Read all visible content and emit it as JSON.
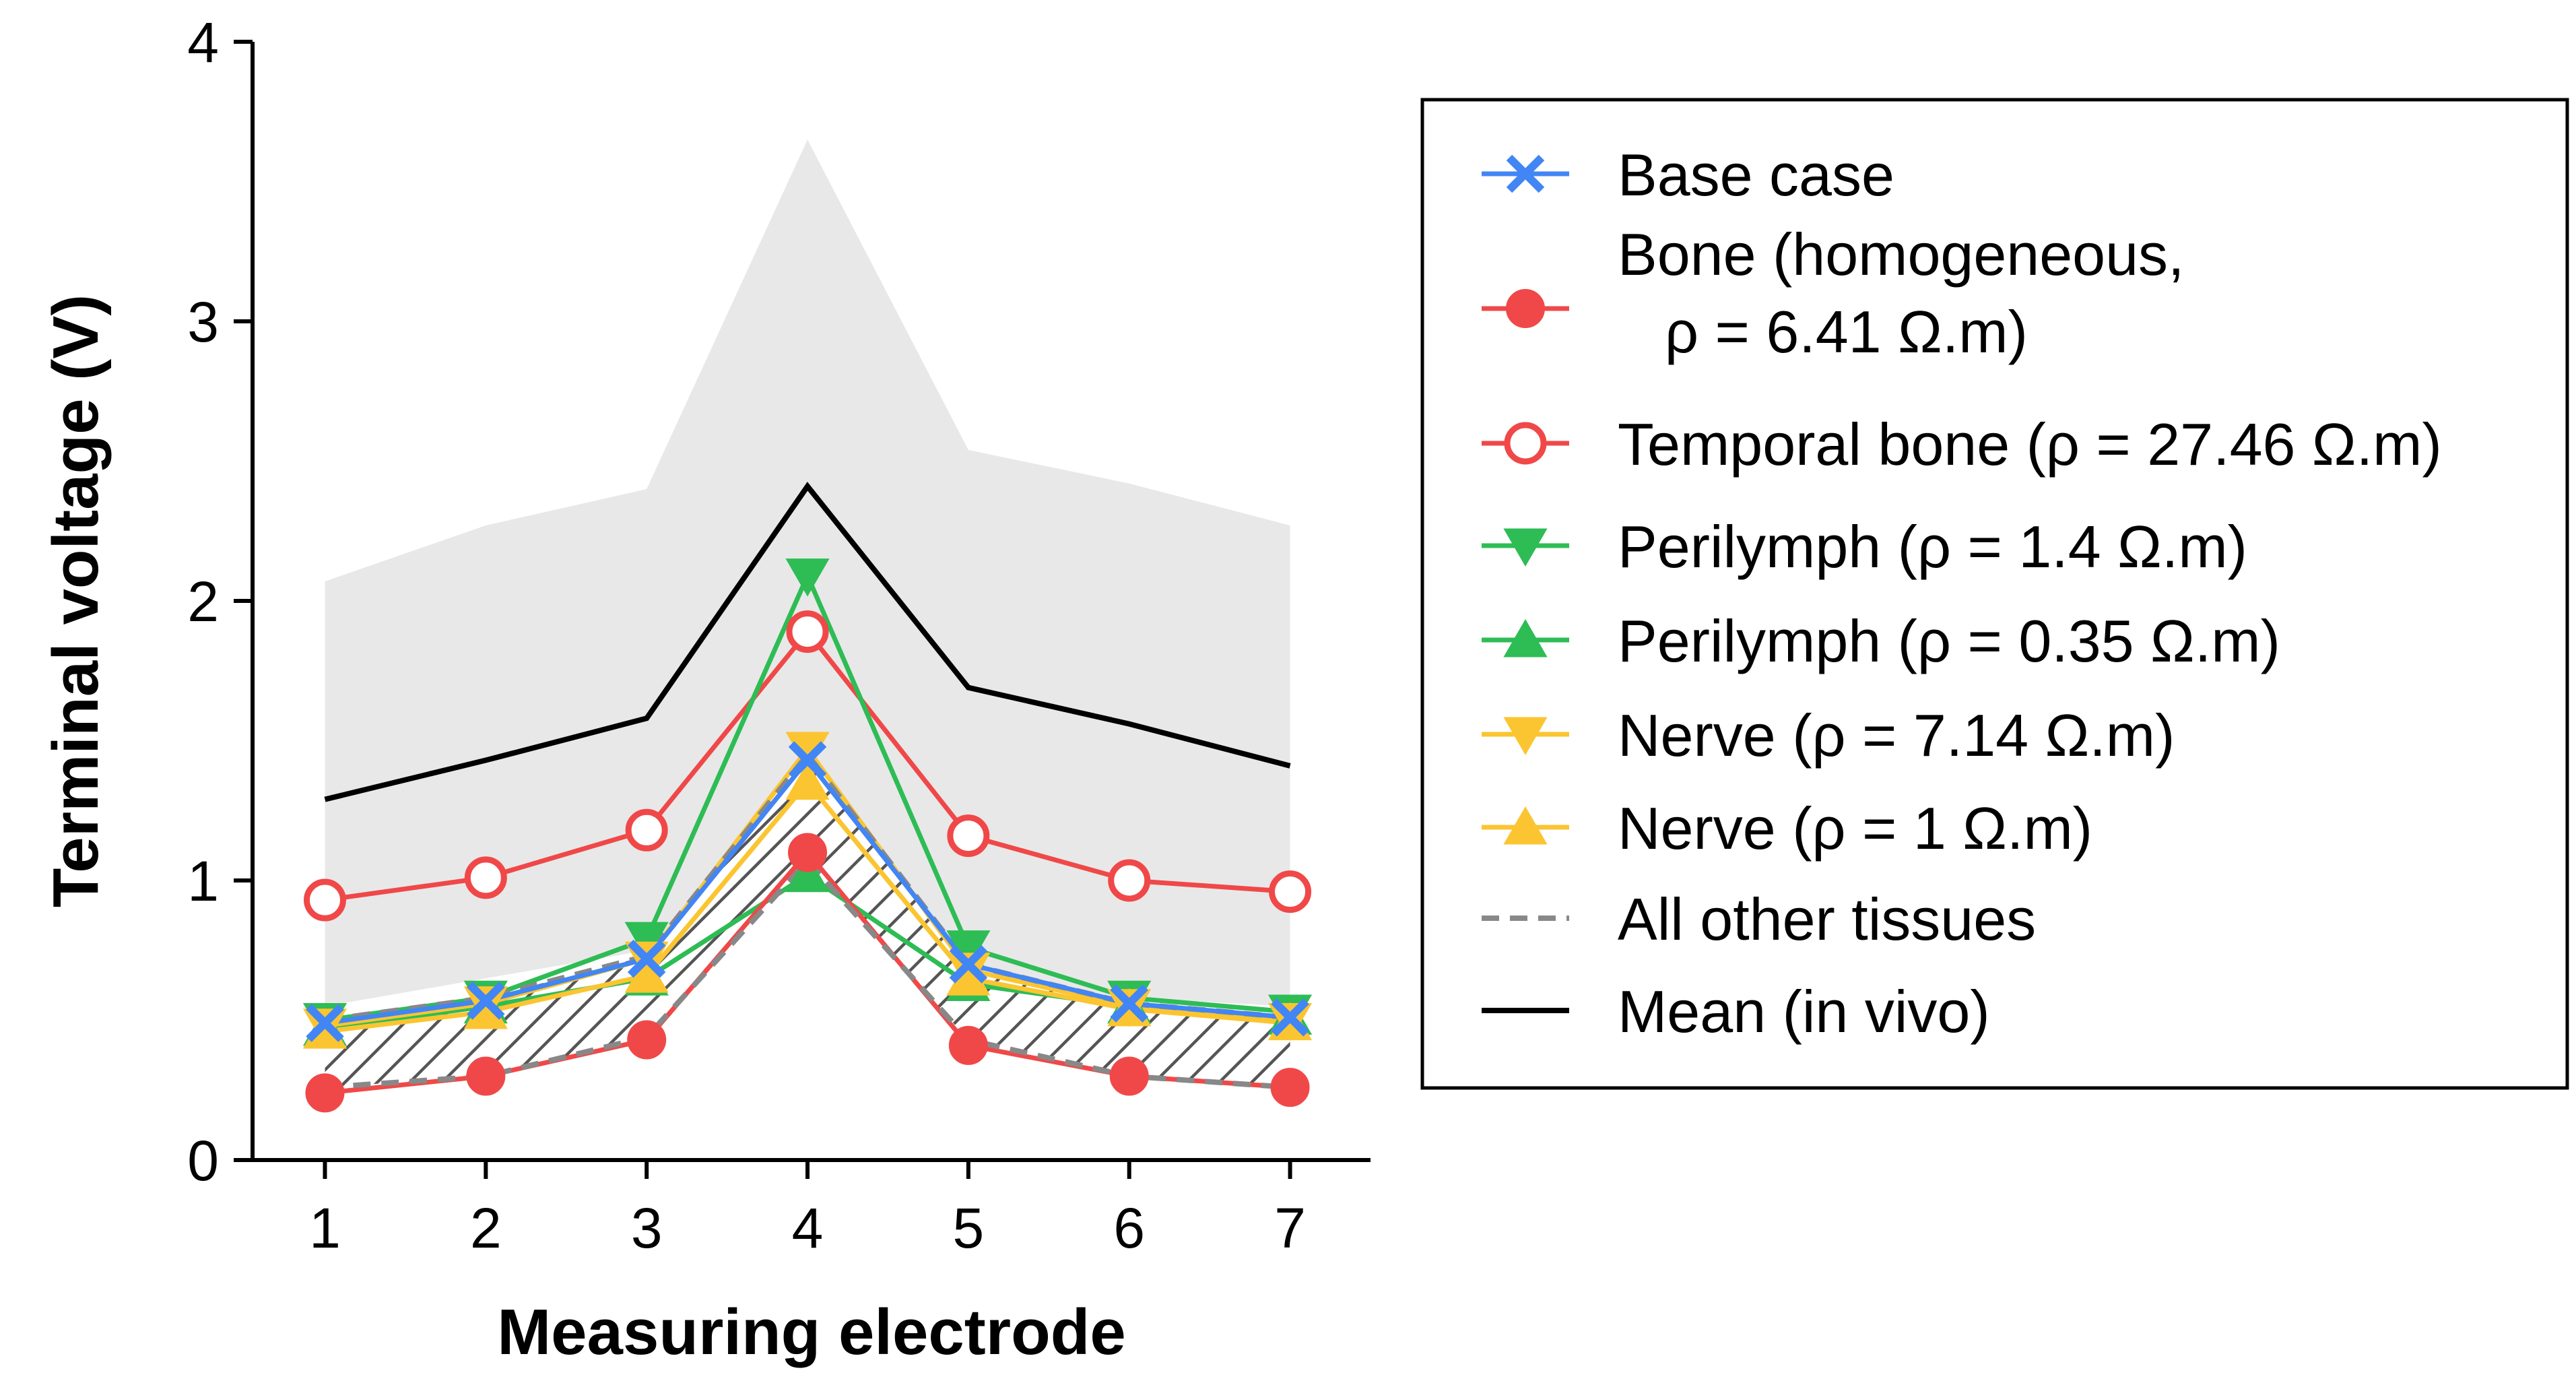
{
  "chart_data": {
    "type": "line",
    "xlabel": "Measuring electrode",
    "ylabel": "Terminal voltage (V)",
    "x": [
      1,
      2,
      3,
      4,
      5,
      6,
      7
    ],
    "xlim": [
      0.55,
      7.5
    ],
    "ylim": [
      0,
      4
    ],
    "yticks": [
      0,
      1,
      2,
      3,
      4
    ],
    "grid": false,
    "legend_position": "right",
    "in_vivo_range": {
      "lower": [
        0.55,
        0.65,
        0.75,
        1.2,
        0.6,
        0.58,
        0.55
      ],
      "upper": [
        2.07,
        2.27,
        2.4,
        3.65,
        2.54,
        2.42,
        2.27
      ],
      "color": "#e8e8e8"
    },
    "other_tissues_range": {
      "lower": [
        0.26,
        0.3,
        0.44,
        1.07,
        0.43,
        0.3,
        0.26
      ],
      "upper": [
        0.5,
        0.58,
        0.73,
        1.45,
        0.7,
        0.56,
        0.51
      ]
    },
    "series": [
      {
        "name": "Base case",
        "values": [
          0.49,
          0.57,
          0.72,
          1.43,
          0.7,
          0.56,
          0.51
        ],
        "color": "#4285f4",
        "marker": "x",
        "filled": true
      },
      {
        "name": "Bone (homogeneous,\n ρ = 6.41 Ω.m)",
        "values": [
          0.24,
          0.3,
          0.43,
          1.1,
          0.41,
          0.3,
          0.26
        ],
        "color": "#f04848",
        "marker": "circle",
        "filled": true
      },
      {
        "name": "Temporal bone (ρ = 27.46 Ω.m)",
        "values": [
          0.93,
          1.01,
          1.18,
          1.89,
          1.16,
          1.0,
          0.96
        ],
        "color": "#f04848",
        "marker": "circle",
        "filled": false
      },
      {
        "name": "Perilymph (ρ = 1.4 Ω.m)",
        "values": [
          0.5,
          0.58,
          0.79,
          2.09,
          0.76,
          0.58,
          0.53
        ],
        "color": "#2ebc55",
        "marker": "triangle-down",
        "filled": true
      },
      {
        "name": "Perilymph (ρ = 0.35 Ω.m)",
        "values": [
          0.47,
          0.55,
          0.65,
          1.02,
          0.63,
          0.55,
          0.51
        ],
        "color": "#2ebc55",
        "marker": "triangle-up",
        "filled": true
      },
      {
        "name": "Nerve (ρ = 7.14 Ω.m)",
        "values": [
          0.48,
          0.56,
          0.72,
          1.47,
          0.68,
          0.55,
          0.5
        ],
        "color": "#fbc531",
        "marker": "triangle-down",
        "filled": true
      },
      {
        "name": "Nerve (ρ = 1 Ω.m)",
        "values": [
          0.46,
          0.53,
          0.66,
          1.35,
          0.65,
          0.54,
          0.49
        ],
        "color": "#fbc531",
        "marker": "triangle-up",
        "filled": true
      },
      {
        "name": "All other tissues",
        "values": [
          0.26,
          0.3,
          0.44,
          1.07,
          0.43,
          0.3,
          0.26
        ],
        "values_upper": [
          0.5,
          0.58,
          0.73,
          1.45,
          0.7,
          0.56,
          0.51
        ],
        "color": "#888888",
        "marker": "none",
        "dashed": true
      },
      {
        "name": "Mean (in vivo)",
        "values": [
          1.29,
          1.43,
          1.58,
          2.41,
          1.69,
          1.56,
          1.41
        ],
        "color": "#000000",
        "marker": "none",
        "dashed": false
      }
    ]
  }
}
